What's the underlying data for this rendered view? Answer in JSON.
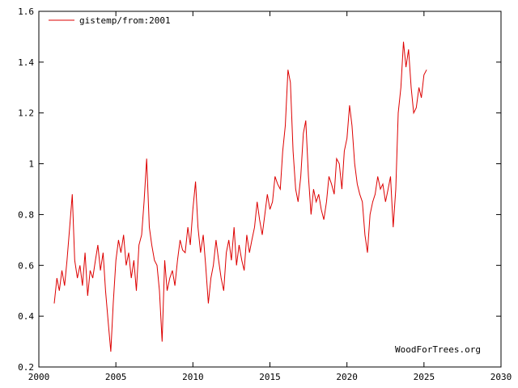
{
  "chart_data": {
    "type": "line",
    "title": "",
    "xlabel": "",
    "ylabel": "",
    "xlim": [
      2000,
      2030
    ],
    "ylim": [
      0.2,
      1.6
    ],
    "x_ticks": [
      2000,
      2005,
      2010,
      2015,
      2020,
      2025,
      2030
    ],
    "y_ticks": [
      0.2,
      0.4,
      0.6,
      0.8,
      1,
      1.2,
      1.4,
      1.6
    ],
    "x_tick_labels": [
      "2000",
      "2005",
      "2010",
      "2015",
      "2020",
      "2025",
      "2030"
    ],
    "y_tick_labels": [
      "0.2",
      "0.4",
      "0.6",
      "0.8",
      "1",
      "1.2",
      "1.4",
      "1.6"
    ],
    "grid": false,
    "legend_position": "top-left",
    "credit": "WoodForTrees.org",
    "series": [
      {
        "name": "gistemp/from:2001",
        "color": "#dd0000",
        "x": [
          2001.0,
          2001.17,
          2001.33,
          2001.5,
          2001.67,
          2001.83,
          2002.0,
          2002.17,
          2002.33,
          2002.5,
          2002.67,
          2002.83,
          2003.0,
          2003.17,
          2003.33,
          2003.5,
          2003.67,
          2003.83,
          2004.0,
          2004.17,
          2004.33,
          2004.5,
          2004.67,
          2004.83,
          2005.0,
          2005.17,
          2005.33,
          2005.5,
          2005.67,
          2005.83,
          2006.0,
          2006.17,
          2006.33,
          2006.5,
          2006.67,
          2006.83,
          2007.0,
          2007.17,
          2007.33,
          2007.5,
          2007.67,
          2007.83,
          2008.0,
          2008.17,
          2008.33,
          2008.5,
          2008.67,
          2008.83,
          2009.0,
          2009.17,
          2009.33,
          2009.5,
          2009.67,
          2009.83,
          2010.0,
          2010.17,
          2010.33,
          2010.5,
          2010.67,
          2010.83,
          2011.0,
          2011.17,
          2011.33,
          2011.5,
          2011.67,
          2011.83,
          2012.0,
          2012.17,
          2012.33,
          2012.5,
          2012.67,
          2012.83,
          2013.0,
          2013.17,
          2013.33,
          2013.5,
          2013.67,
          2013.83,
          2014.0,
          2014.17,
          2014.33,
          2014.5,
          2014.67,
          2014.83,
          2015.0,
          2015.17,
          2015.33,
          2015.5,
          2015.67,
          2015.83,
          2016.0,
          2016.17,
          2016.33,
          2016.5,
          2016.67,
          2016.83,
          2017.0,
          2017.17,
          2017.33,
          2017.5,
          2017.67,
          2017.83,
          2018.0,
          2018.17,
          2018.33,
          2018.5,
          2018.67,
          2018.83,
          2019.0,
          2019.17,
          2019.33,
          2019.5,
          2019.67,
          2019.83,
          2020.0,
          2020.17,
          2020.33,
          2020.5,
          2020.67,
          2020.83,
          2021.0,
          2021.17,
          2021.33,
          2021.5,
          2021.67,
          2021.83,
          2022.0,
          2022.17,
          2022.33,
          2022.5,
          2022.67,
          2022.83,
          2023.0,
          2023.17,
          2023.33,
          2023.5,
          2023.67,
          2023.83,
          2024.0,
          2024.17,
          2024.33,
          2024.5,
          2024.67,
          2024.83,
          2025.0,
          2025.17
        ],
        "y": [
          0.45,
          0.55,
          0.5,
          0.58,
          0.52,
          0.62,
          0.75,
          0.88,
          0.62,
          0.55,
          0.6,
          0.52,
          0.65,
          0.48,
          0.58,
          0.55,
          0.62,
          0.68,
          0.58,
          0.65,
          0.5,
          0.38,
          0.26,
          0.45,
          0.62,
          0.7,
          0.65,
          0.72,
          0.6,
          0.65,
          0.55,
          0.62,
          0.5,
          0.68,
          0.72,
          0.85,
          1.02,
          0.75,
          0.68,
          0.62,
          0.6,
          0.5,
          0.3,
          0.62,
          0.5,
          0.55,
          0.58,
          0.52,
          0.62,
          0.7,
          0.66,
          0.65,
          0.75,
          0.68,
          0.82,
          0.93,
          0.75,
          0.65,
          0.72,
          0.6,
          0.45,
          0.55,
          0.6,
          0.7,
          0.62,
          0.55,
          0.5,
          0.65,
          0.7,
          0.62,
          0.75,
          0.6,
          0.68,
          0.62,
          0.58,
          0.72,
          0.65,
          0.7,
          0.75,
          0.85,
          0.78,
          0.72,
          0.8,
          0.88,
          0.82,
          0.85,
          0.95,
          0.92,
          0.9,
          1.05,
          1.15,
          1.37,
          1.32,
          1.05,
          0.9,
          0.85,
          0.95,
          1.12,
          1.17,
          0.95,
          0.8,
          0.9,
          0.85,
          0.88,
          0.82,
          0.78,
          0.85,
          0.95,
          0.92,
          0.88,
          1.02,
          1.0,
          0.9,
          1.05,
          1.1,
          1.23,
          1.15,
          1.0,
          0.92,
          0.88,
          0.85,
          0.72,
          0.65,
          0.8,
          0.85,
          0.88,
          0.95,
          0.9,
          0.92,
          0.85,
          0.9,
          0.95,
          0.75,
          0.9,
          1.2,
          1.3,
          1.48,
          1.38,
          1.45,
          1.3,
          1.2,
          1.22,
          1.3,
          1.26,
          1.35,
          1.37
        ]
      }
    ]
  }
}
